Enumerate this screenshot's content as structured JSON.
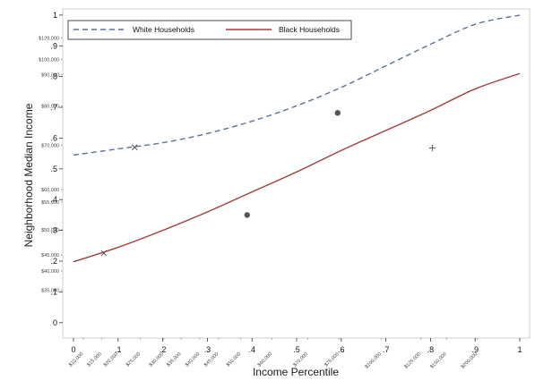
{
  "chart_data": {
    "type": "line",
    "xlabel": "Income Percentile",
    "ylabel": "Neighborhood Median Income",
    "xlim": [
      0,
      1
    ],
    "ylim": [
      -0.05,
      1.02
    ],
    "x_ticks": [
      "0",
      ".1",
      ".2",
      ".3",
      ".4",
      ".5",
      ".6",
      ".7",
      ".8",
      ".9",
      "1"
    ],
    "y_ticks": [
      "0",
      ".1",
      ".2",
      ".3",
      ".4",
      ".5",
      ".6",
      ".7",
      ".8",
      ".9",
      "1"
    ],
    "x_income_ticks": [
      {
        "x": 0.022,
        "label": "$10,000"
      },
      {
        "x": 0.063,
        "label": "$15,000"
      },
      {
        "x": 0.1,
        "label": "$20,000"
      },
      {
        "x": 0.15,
        "label": "$25,000"
      },
      {
        "x": 0.202,
        "label": "$30,000"
      },
      {
        "x": 0.241,
        "label": "$35,000"
      },
      {
        "x": 0.283,
        "label": "$40,000"
      },
      {
        "x": 0.325,
        "label": "$45,000"
      },
      {
        "x": 0.375,
        "label": "$50,000"
      },
      {
        "x": 0.445,
        "label": "$60,000"
      },
      {
        "x": 0.525,
        "label": "$70,000"
      },
      {
        "x": 0.595,
        "label": "$75,000"
      },
      {
        "x": 0.69,
        "label": "$100,000"
      },
      {
        "x": 0.778,
        "label": "$125,000"
      },
      {
        "x": 0.836,
        "label": "$150,000"
      },
      {
        "x": 0.905,
        "label": "$200,000"
      }
    ],
    "y_income_ticks": [
      {
        "y": 0.926,
        "label": "$120,000"
      },
      {
        "y": 0.856,
        "label": "$100,000"
      },
      {
        "y": 0.806,
        "label": "$90,000"
      },
      {
        "y": 0.705,
        "label": "$80,000"
      },
      {
        "y": 0.576,
        "label": "$70,000"
      },
      {
        "y": 0.433,
        "label": "$60,000"
      },
      {
        "y": 0.392,
        "label": "$55,000"
      },
      {
        "y": 0.302,
        "label": "$50,000"
      },
      {
        "y": 0.22,
        "label": "$45,000"
      },
      {
        "y": 0.168,
        "label": "$40,000"
      },
      {
        "y": 0.105,
        "label": "$35,000"
      }
    ],
    "series": [
      {
        "name": "White Households",
        "color": "#5b7196",
        "dash": "dashed",
        "points": [
          [
            0,
            0.545
          ],
          [
            0.1,
            0.565
          ],
          [
            0.2,
            0.585
          ],
          [
            0.3,
            0.615
          ],
          [
            0.4,
            0.655
          ],
          [
            0.5,
            0.705
          ],
          [
            0.6,
            0.765
          ],
          [
            0.7,
            0.835
          ],
          [
            0.8,
            0.905
          ],
          [
            0.9,
            0.97
          ],
          [
            1,
            1.0
          ]
        ],
        "markers": [
          {
            "x": 0.137,
            "y": 0.57,
            "shape": "x"
          },
          {
            "x": 0.592,
            "y": 0.682,
            "shape": "dot"
          }
        ]
      },
      {
        "name": "Black Households",
        "color": "#a33b3b",
        "dash": "solid",
        "points": [
          [
            0,
            0.198
          ],
          [
            0.1,
            0.245
          ],
          [
            0.2,
            0.3
          ],
          [
            0.3,
            0.36
          ],
          [
            0.4,
            0.425
          ],
          [
            0.5,
            0.49
          ],
          [
            0.6,
            0.56
          ],
          [
            0.7,
            0.625
          ],
          [
            0.8,
            0.69
          ],
          [
            0.9,
            0.76
          ],
          [
            1,
            0.81
          ]
        ],
        "markers": [
          {
            "x": 0.068,
            "y": 0.226,
            "shape": "x"
          },
          {
            "x": 0.389,
            "y": 0.35,
            "shape": "dot"
          },
          {
            "x": 0.804,
            "y": 0.568,
            "shape": "plus"
          }
        ]
      }
    ],
    "legend_position": "top",
    "grid": false
  }
}
